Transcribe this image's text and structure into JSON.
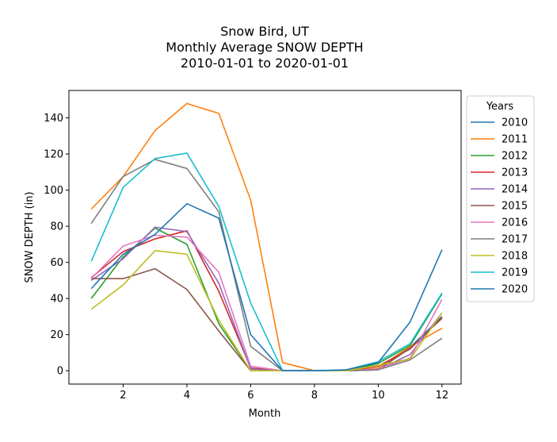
{
  "chart_data": {
    "type": "line",
    "title_lines": [
      "Snow Bird, UT",
      "Monthly Average SNOW DEPTH",
      "2010-01-01 to 2020-01-01"
    ],
    "xlabel": "Month",
    "ylabel": "SNOW DEPTH (in)",
    "xlim": [
      0.3,
      12.6
    ],
    "ylim": [
      -7.4,
      155.2
    ],
    "xticks": [
      2,
      4,
      6,
      8,
      10,
      12
    ],
    "yticks": [
      0,
      20,
      40,
      60,
      80,
      100,
      120,
      140
    ],
    "grid": false,
    "legend": {
      "title": "Years",
      "placement": "upper-right-outside"
    },
    "x": [
      1,
      2,
      3,
      4,
      5,
      6,
      7,
      8,
      9,
      10,
      11,
      12
    ],
    "series": [
      {
        "name": "2010",
        "color": "#1f77b4",
        "values": [
          null,
          null,
          null,
          null,
          null,
          null,
          null,
          null,
          null,
          1.5,
          13.0,
          30.0
        ]
      },
      {
        "name": "2011",
        "color": "#ff7f0e",
        "values": [
          89.5,
          107.5,
          133.0,
          148.0,
          142.5,
          94.5,
          4.5,
          0.0,
          0.0,
          1.5,
          13.5,
          23.5
        ]
      },
      {
        "name": "2012",
        "color": "#2ca02c",
        "values": [
          40.0,
          63.0,
          79.0,
          70.0,
          26.0,
          0.0,
          0.0,
          0.0,
          0.0,
          4.0,
          14.0,
          42.5
        ]
      },
      {
        "name": "2013",
        "color": "#d62728",
        "values": [
          51.5,
          66.0,
          73.0,
          77.5,
          44.0,
          1.5,
          0.0,
          0.0,
          0.0,
          2.5,
          12.0,
          29.5
        ]
      },
      {
        "name": "2014",
        "color": "#9467bd",
        "values": [
          50.0,
          62.0,
          79.5,
          77.0,
          48.5,
          1.0,
          0.0,
          0.0,
          0.0,
          0.5,
          9.0,
          32.0
        ]
      },
      {
        "name": "2015",
        "color": "#8c564b",
        "values": [
          51.0,
          51.0,
          56.5,
          45.0,
          22.0,
          0.0,
          0.0,
          0.0,
          0.0,
          0.5,
          12.5,
          29.0
        ]
      },
      {
        "name": "2016",
        "color": "#e377c2",
        "values": [
          51.0,
          69.0,
          75.0,
          74.0,
          54.5,
          2.5,
          0.0,
          0.0,
          0.0,
          1.0,
          7.0,
          39.5
        ]
      },
      {
        "name": "2017",
        "color": "#7f7f7f",
        "values": [
          81.5,
          107.5,
          117.0,
          112.0,
          88.0,
          13.5,
          0.0,
          0.0,
          0.0,
          0.5,
          6.0,
          18.0
        ]
      },
      {
        "name": "2018",
        "color": "#bcbd22",
        "values": [
          34.0,
          47.5,
          66.5,
          64.5,
          28.0,
          0.0,
          0.0,
          0.0,
          0.0,
          3.0,
          6.5,
          32.0
        ]
      },
      {
        "name": "2019",
        "color": "#17becf",
        "values": [
          60.5,
          101.5,
          117.5,
          120.5,
          91.0,
          37.5,
          0.0,
          0.0,
          0.5,
          5.0,
          15.0,
          43.0
        ]
      },
      {
        "name": "2020",
        "color": "#1f77b4",
        "values": [
          45.5,
          64.5,
          75.5,
          92.5,
          84.5,
          20.0,
          0.0,
          0.0,
          0.5,
          4.5,
          27.0,
          67.0
        ]
      }
    ]
  }
}
